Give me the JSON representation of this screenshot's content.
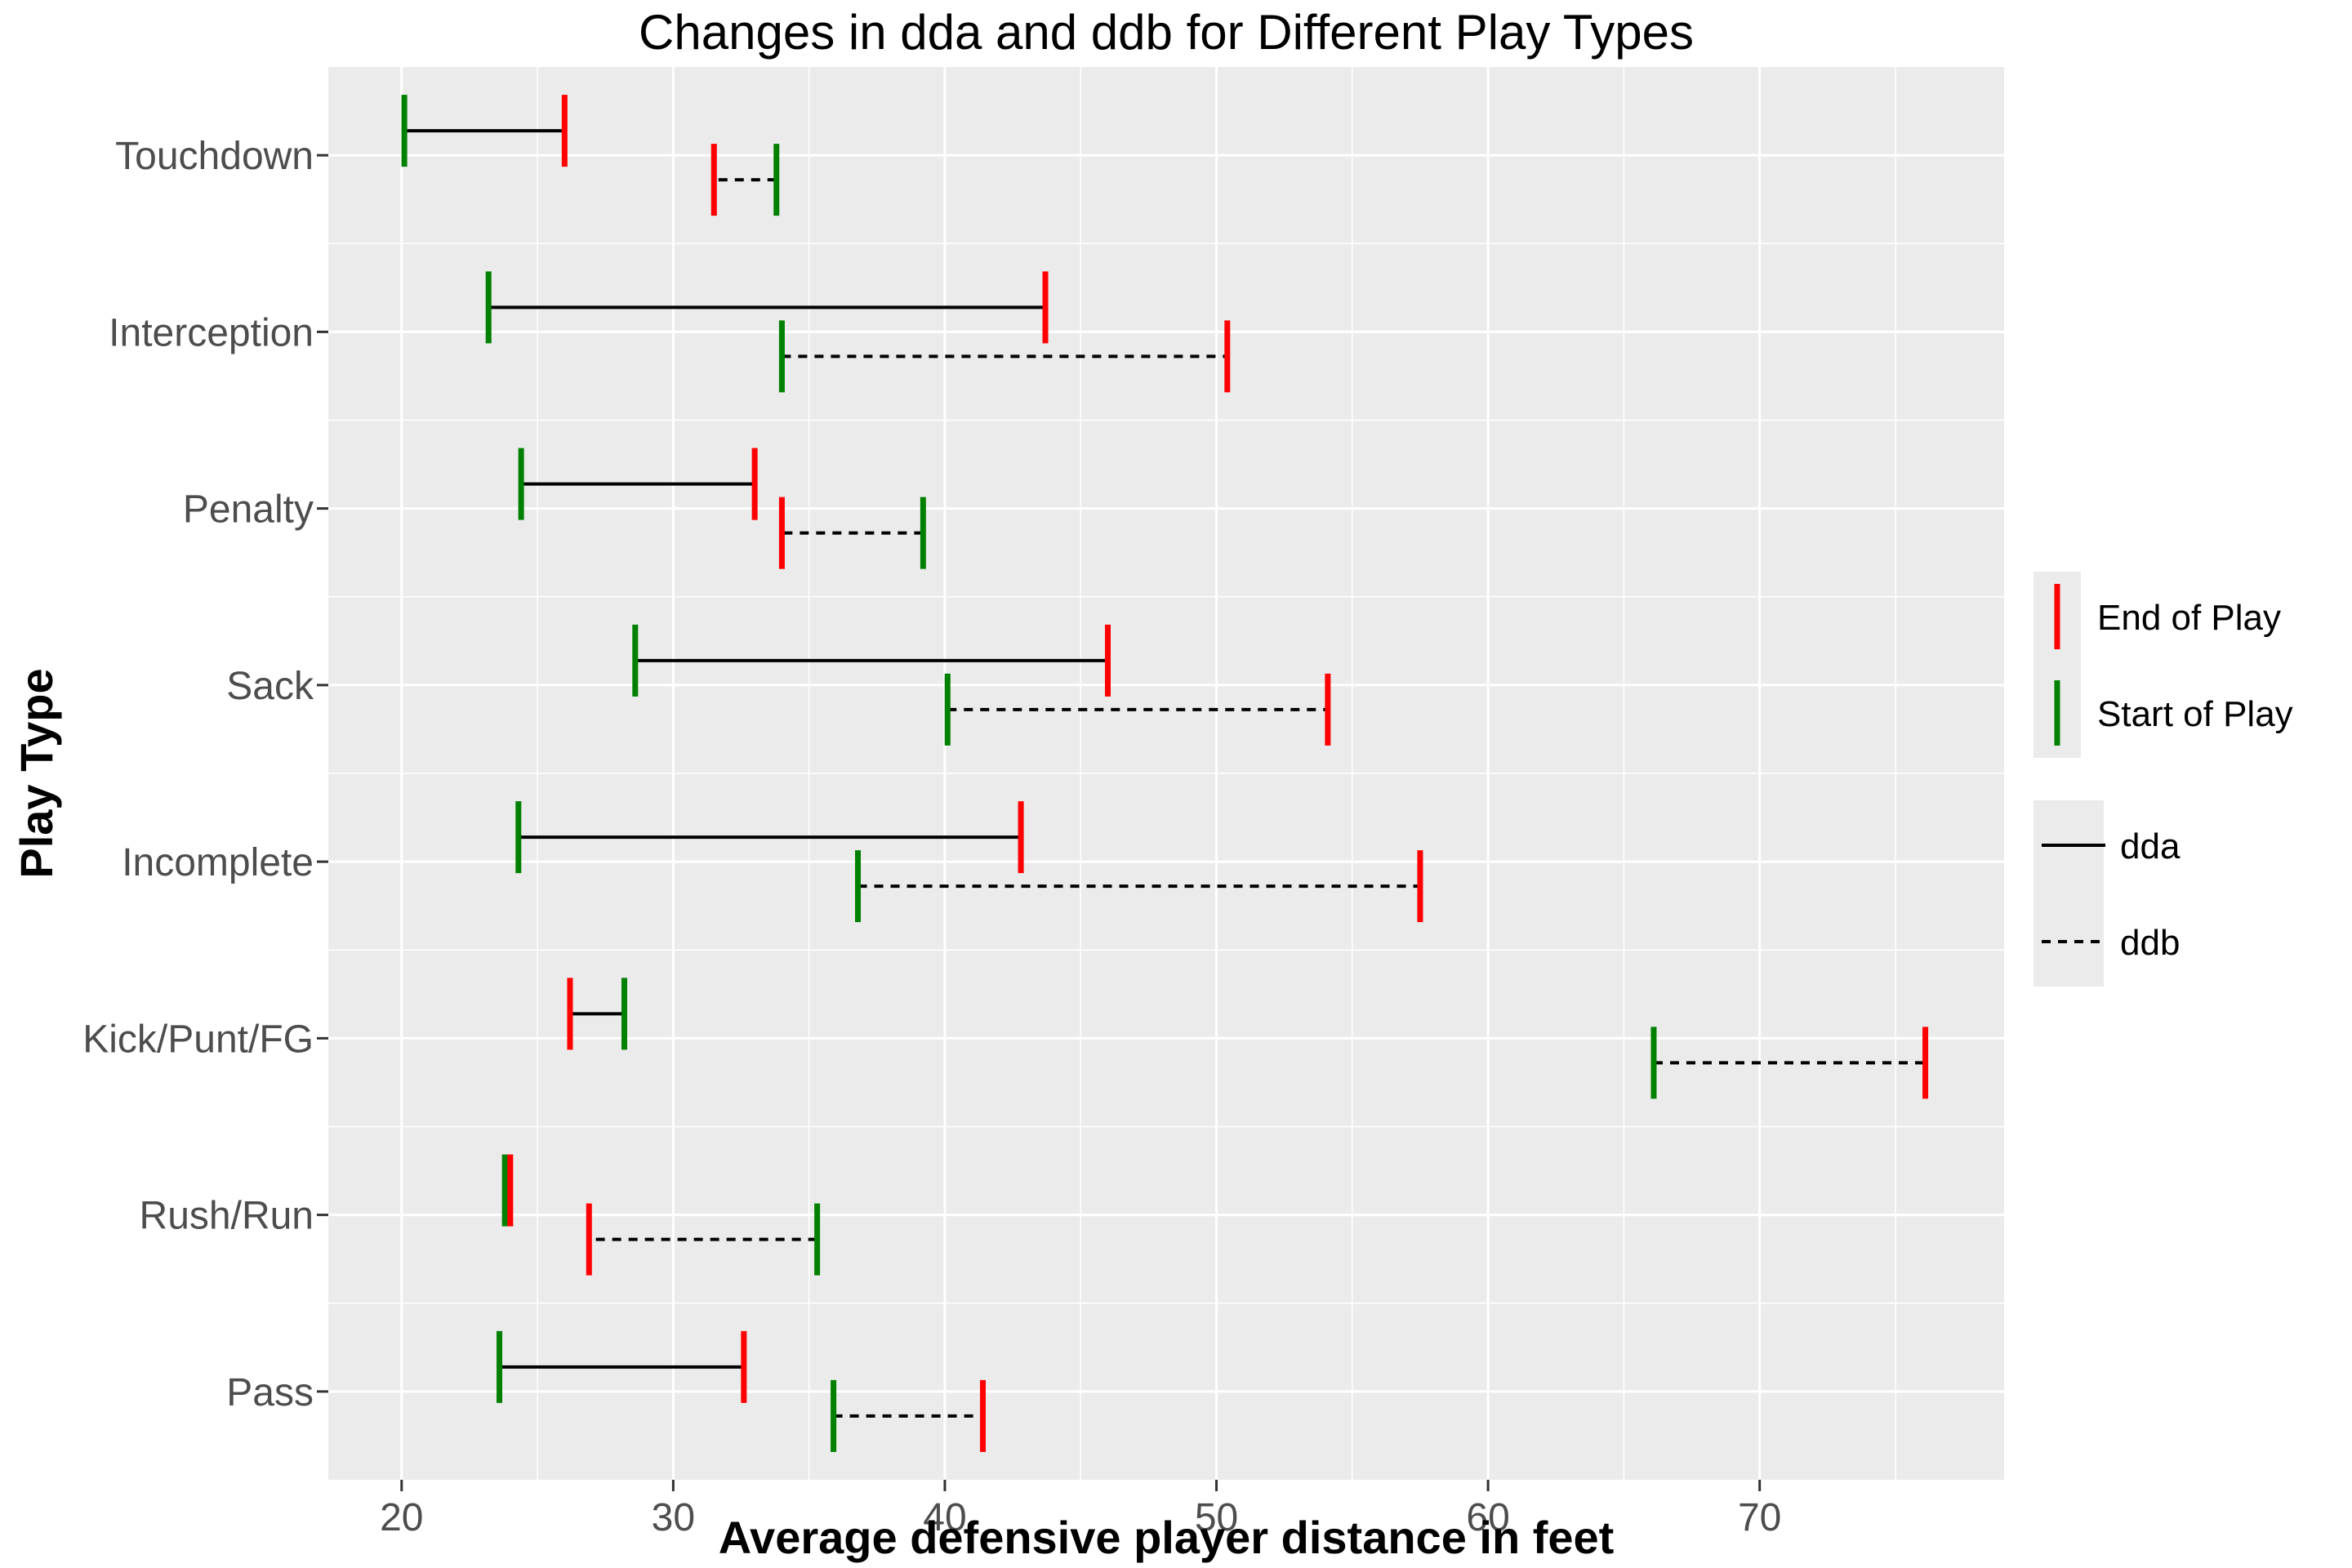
{
  "chart_data": {
    "type": "dumbbell",
    "title": "Changes in dda and ddb for Different Play Types",
    "xlabel": "Average defensive player distance in feet",
    "ylabel": "Play Type",
    "xlim": [
      17.3,
      79
    ],
    "x_ticks": [
      20,
      30,
      40,
      50,
      60,
      70
    ],
    "categories": [
      "Touchdown",
      "Interception",
      "Penalty",
      "Sack",
      "Incomplete",
      "Kick/Punt/FG",
      "Rush/Run",
      "Pass"
    ],
    "series": [
      {
        "name": "dda",
        "line_style": "solid",
        "start": [
          20.1,
          23.2,
          24.4,
          28.6,
          24.3,
          28.2,
          23.8,
          23.6
        ],
        "end": [
          26.0,
          43.7,
          33.0,
          46.0,
          42.8,
          26.2,
          24.0,
          32.6
        ]
      },
      {
        "name": "ddb",
        "line_style": "dashed",
        "start": [
          33.8,
          34.0,
          39.2,
          40.1,
          36.8,
          66.1,
          35.3,
          35.9
        ],
        "end": [
          31.5,
          50.4,
          34.0,
          54.1,
          57.5,
          76.1,
          26.9,
          41.4
        ]
      }
    ],
    "markers": {
      "start": {
        "label": "Start of Play",
        "color": "#008000"
      },
      "end": {
        "label": "End of Play",
        "color": "#ff0000"
      }
    },
    "legend_position": "right",
    "grid": true,
    "panel_background": "#ebebeb"
  }
}
